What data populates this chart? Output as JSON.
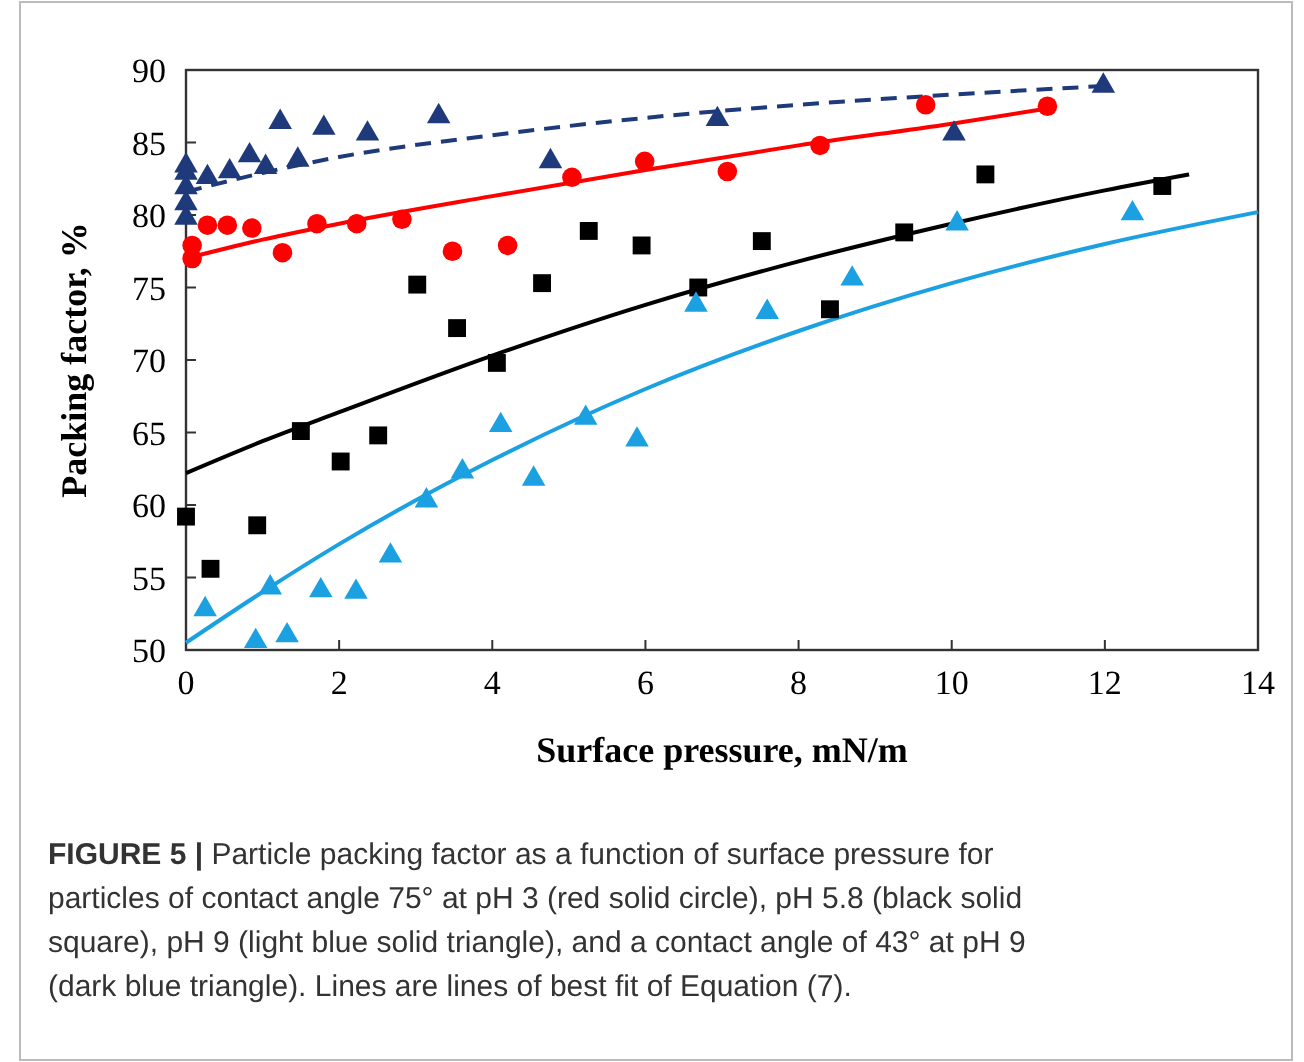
{
  "chart_data": {
    "type": "scatter",
    "xlabel": "Surface pressure, mN/m",
    "ylabel": "Packing factor, %",
    "xlim": [
      0,
      14
    ],
    "ylim": [
      50,
      90
    ],
    "xticks": [
      0,
      2,
      4,
      6,
      8,
      10,
      12,
      14
    ],
    "yticks": [
      50,
      55,
      60,
      65,
      70,
      75,
      80,
      85,
      90
    ],
    "grid": false,
    "annotations": [
      "FIGURE 5 | Particle packing factor as a function of surface pressure for particles of contact angle 75° at pH 3 (red solid circle), pH 5.8 (black solid square), pH 9 (light blue solid triangle), and a contact angle of 43° at pH 9 (dark blue triangle). Lines are lines of best fit of Equation (7)."
    ],
    "series": [
      {
        "type": "line",
        "color": "#1f3a7a",
        "line_style": "dashed",
        "marker": "none",
        "x": [
          0,
          1,
          2,
          4,
          6,
          8,
          10,
          12
        ],
        "values": [
          81.6,
          82.9,
          84.0,
          85.5,
          86.7,
          87.6,
          88.3,
          88.9
        ]
      },
      {
        "type": "line",
        "color": "#ff0000",
        "line_style": "solid",
        "marker": "none",
        "x": [
          0,
          1,
          2,
          4,
          6,
          8,
          10,
          11.2
        ],
        "values": [
          77.0,
          78.3,
          79.4,
          81.3,
          83.1,
          84.8,
          86.3,
          87.3
        ]
      },
      {
        "type": "line",
        "color": "#000000",
        "line_style": "solid",
        "marker": "none",
        "x": [
          0,
          1,
          2,
          4,
          6,
          8,
          10,
          12,
          13.1
        ],
        "values": [
          62.2,
          64.4,
          66.4,
          70.3,
          73.8,
          76.8,
          79.4,
          81.7,
          82.8
        ]
      },
      {
        "type": "line",
        "color": "#1ba1e2",
        "line_style": "solid",
        "marker": "none",
        "x": [
          0,
          1,
          2,
          4,
          6,
          8,
          10,
          12,
          14
        ],
        "values": [
          50.5,
          54.0,
          57.3,
          63.1,
          68.0,
          72.0,
          75.3,
          78.0,
          80.2
        ]
      },
      {
        "color": "#1f3a7a",
        "marker": "triangle",
        "x": [
          0,
          0,
          0,
          0,
          0,
          0.28,
          0.57,
          0.83,
          1.04,
          1.23,
          1.46,
          1.8,
          2.37,
          3.3,
          4.76,
          6.94,
          10.03,
          11.98
        ],
        "values": [
          83.4,
          82.9,
          81.9,
          80.8,
          79.8,
          82.6,
          83.0,
          84.1,
          83.3,
          86.4,
          83.8,
          86.0,
          85.6,
          86.8,
          83.7,
          86.6,
          85.6,
          88.9
        ]
      },
      {
        "color": "#ff0000",
        "marker": "circle",
        "x": [
          0.08,
          0.08,
          0.28,
          0.54,
          0.86,
          1.26,
          1.71,
          2.23,
          2.82,
          3.48,
          4.2,
          5.04,
          5.99,
          7.07,
          8.28,
          9.66,
          11.25
        ],
        "values": [
          77.0,
          77.9,
          79.3,
          79.3,
          79.1,
          77.4,
          79.4,
          79.4,
          79.7,
          77.5,
          77.9,
          82.6,
          83.7,
          83.0,
          84.8,
          87.6,
          87.5
        ]
      },
      {
        "color": "#000000",
        "marker": "square",
        "x": [
          0,
          0.32,
          0.93,
          1.5,
          2.02,
          2.51,
          3.02,
          3.54,
          4.06,
          4.65,
          5.26,
          5.95,
          6.69,
          7.52,
          8.41,
          9.38,
          10.44,
          12.75
        ],
        "values": [
          59.2,
          55.6,
          58.6,
          65.1,
          63.0,
          64.8,
          75.2,
          72.2,
          69.8,
          75.3,
          78.9,
          77.9,
          75.0,
          78.2,
          73.5,
          78.8,
          82.8,
          82.0
        ]
      },
      {
        "color": "#1ba1e2",
        "marker": "triangle",
        "x": [
          0.25,
          0.91,
          1.1,
          1.32,
          1.76,
          2.22,
          2.67,
          3.14,
          3.61,
          4.11,
          4.54,
          5.22,
          5.89,
          6.66,
          7.59,
          8.7,
          10.07,
          12.36
        ],
        "values": [
          52.8,
          50.6,
          54.3,
          51.0,
          54.1,
          54.0,
          56.5,
          60.3,
          62.3,
          65.5,
          61.8,
          66.0,
          64.5,
          73.8,
          73.3,
          75.6,
          79.4,
          80.1
        ]
      }
    ]
  }
}
